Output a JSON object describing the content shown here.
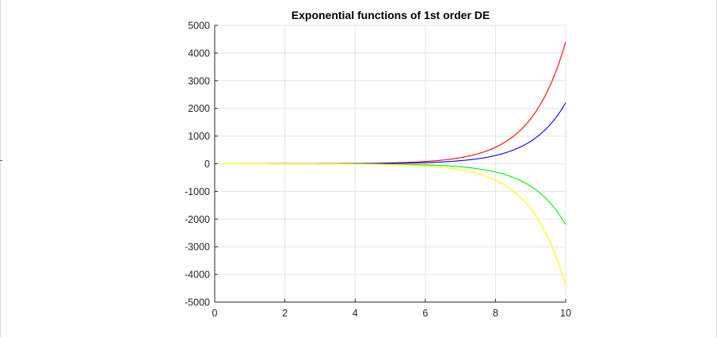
{
  "chart_data": {
    "type": "line",
    "title": "Exponential functions of 1st order DE",
    "xlabel": "",
    "ylabel": "",
    "xlim": [
      0,
      10
    ],
    "ylim": [
      -5000,
      5000
    ],
    "xticks": [
      0,
      2,
      4,
      6,
      8,
      10
    ],
    "yticks": [
      5000,
      4000,
      3000,
      2000,
      1000,
      0,
      -1000,
      -2000,
      -3000,
      -4000,
      -5000
    ],
    "grid": true,
    "legend": "none",
    "series": [
      {
        "color": "#ff0000",
        "x": [
          0,
          1,
          2,
          3,
          4,
          5,
          6,
          7,
          8,
          9,
          10
        ],
        "y": [
          0.2,
          0.54,
          1.48,
          4.02,
          10.9,
          29.7,
          80.7,
          219,
          596,
          1621,
          4405
        ]
      },
      {
        "color": "#0000ff",
        "x": [
          0,
          1,
          2,
          3,
          4,
          5,
          6,
          7,
          8,
          9,
          10
        ],
        "y": [
          0.1,
          0.27,
          0.74,
          2.01,
          5.46,
          14.8,
          40.3,
          110,
          298,
          810,
          2203
        ]
      },
      {
        "color": "#00ee00",
        "x": [
          0,
          1,
          2,
          3,
          4,
          5,
          6,
          7,
          8,
          9,
          10
        ],
        "y": [
          -0.1,
          -0.27,
          -0.74,
          -2.01,
          -5.46,
          -14.8,
          -40.3,
          -110,
          -298,
          -810,
          -2203
        ]
      },
      {
        "color": "#ffff00",
        "x": [
          0,
          1,
          2,
          3,
          4,
          5,
          6,
          7,
          8,
          9,
          10
        ],
        "y": [
          -0.2,
          -0.54,
          -1.48,
          -4.02,
          -10.9,
          -29.7,
          -80.7,
          -219,
          -596,
          -1621,
          -4405
        ]
      }
    ]
  }
}
